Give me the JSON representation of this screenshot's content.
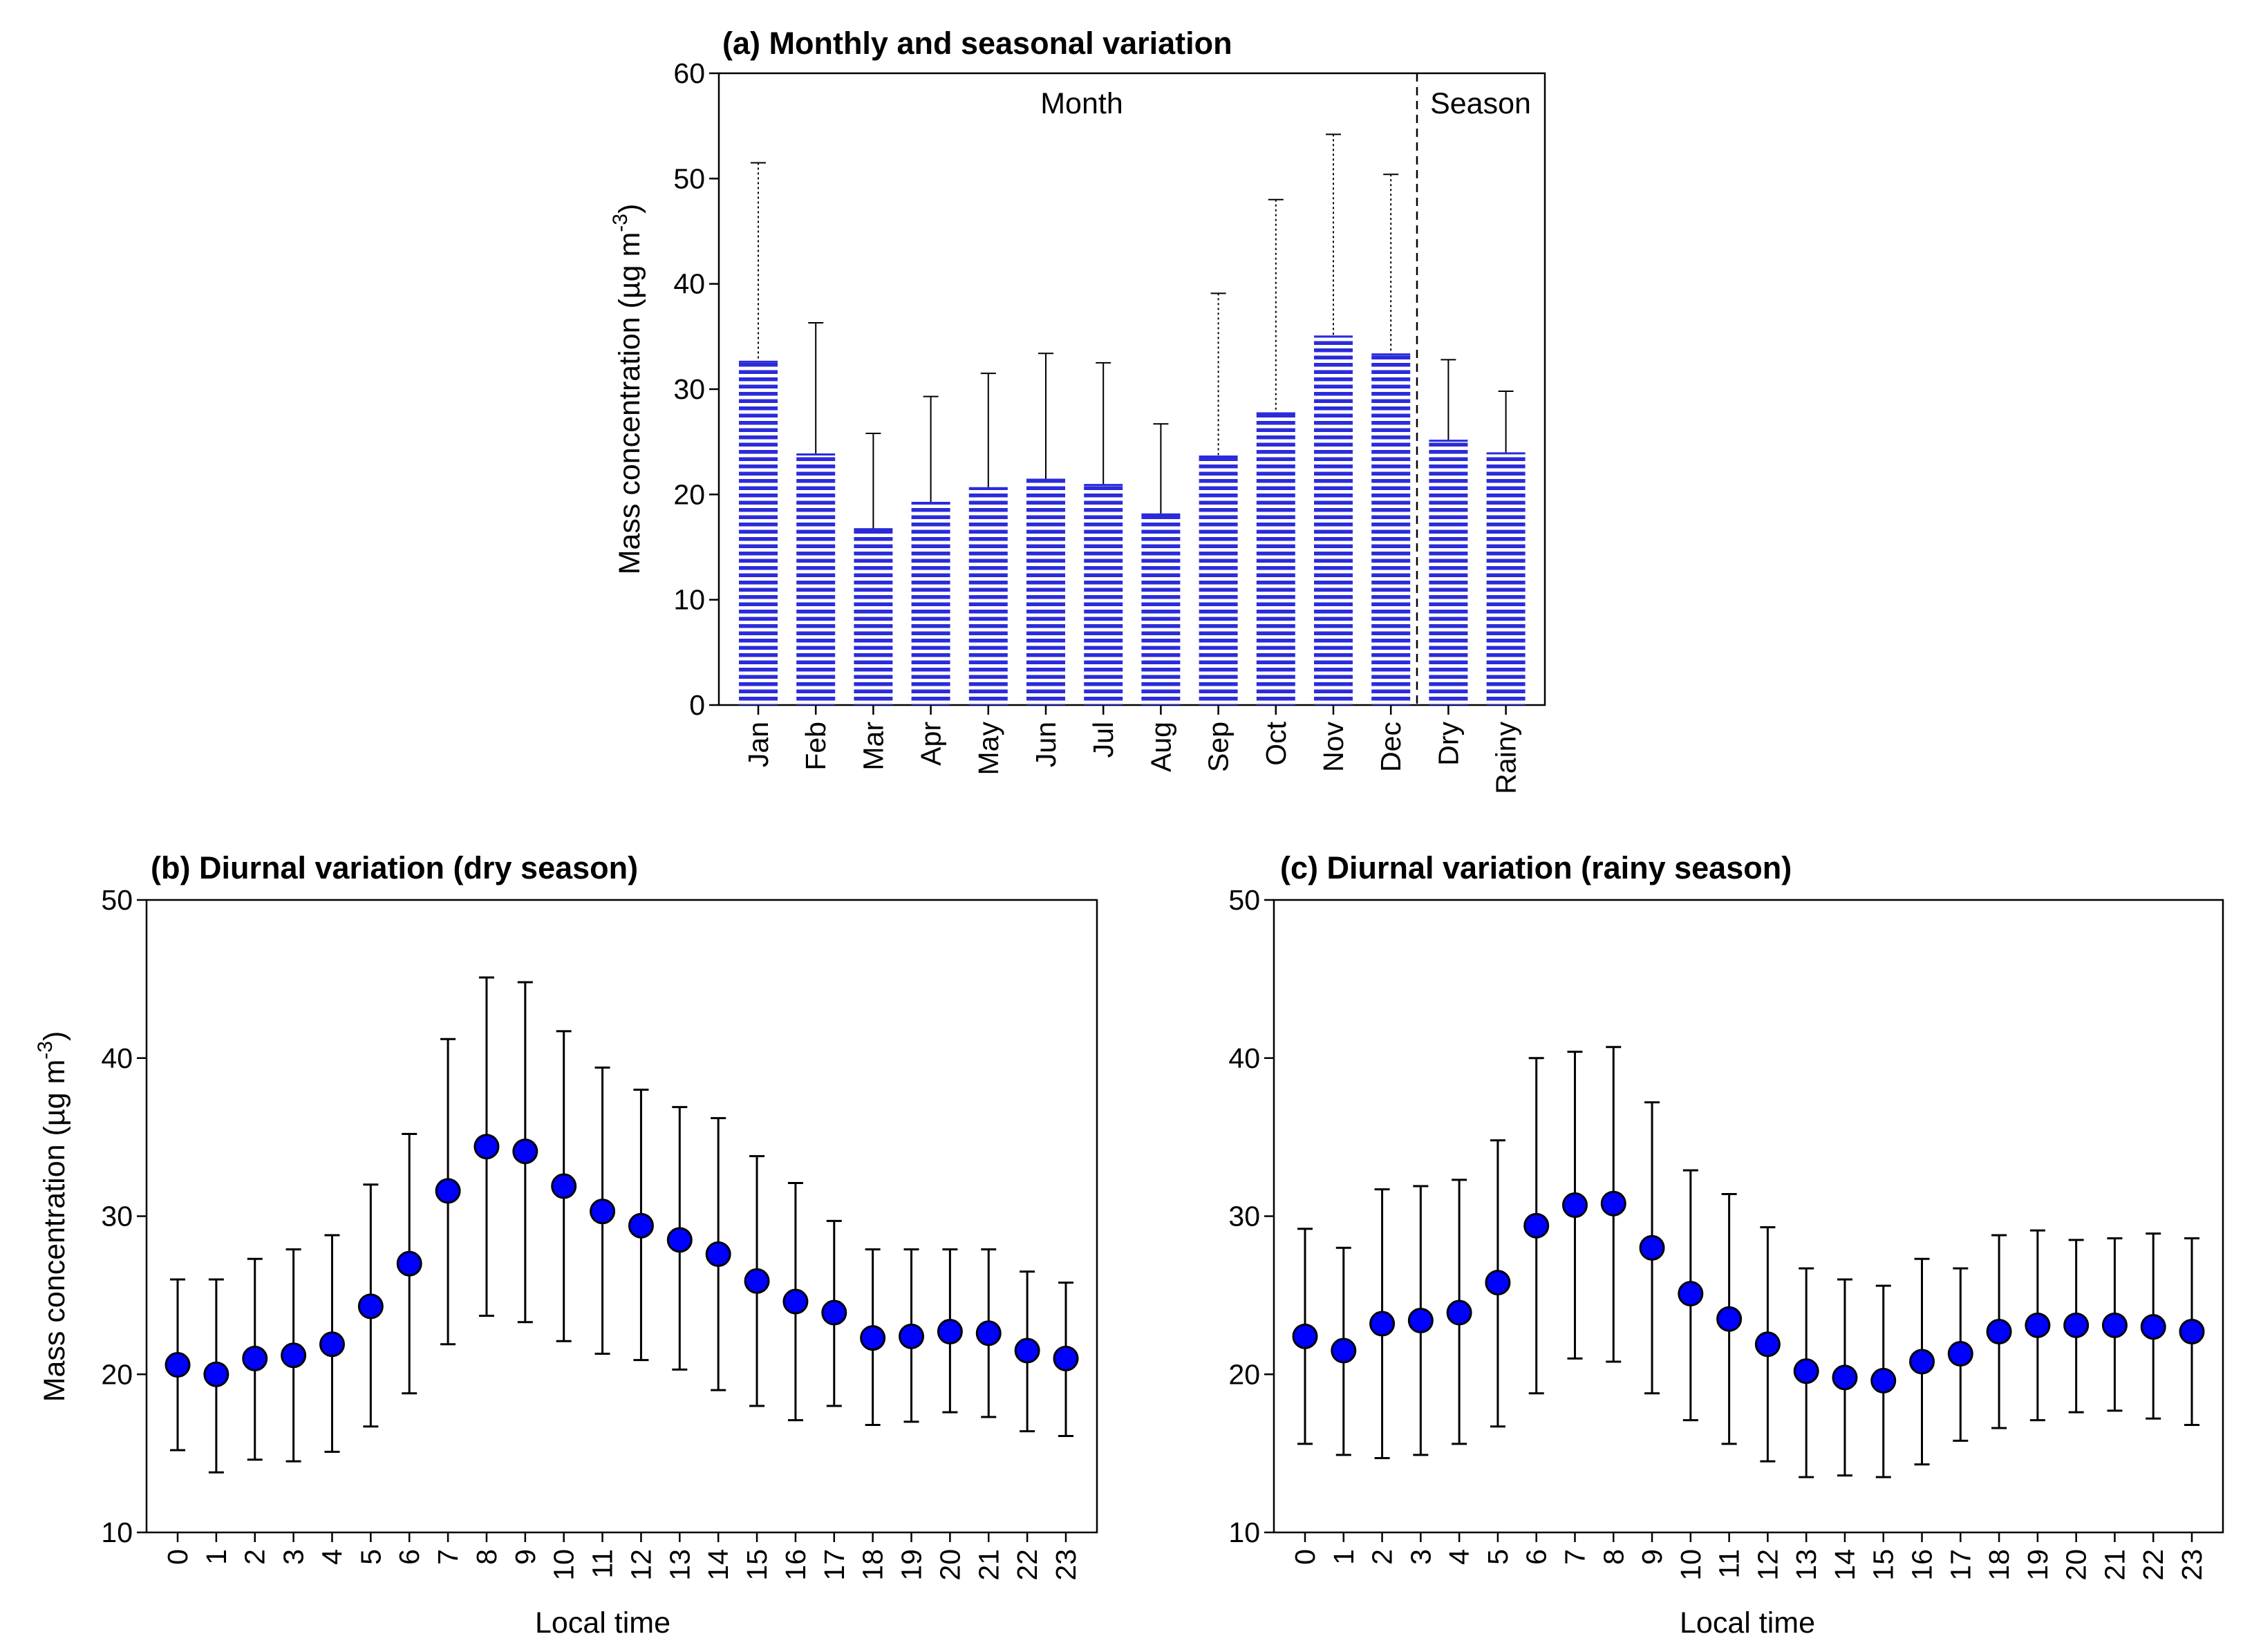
{
  "chart_data": [
    {
      "id": "a",
      "type": "bar",
      "title": "(a) Monthly and seasonal variation",
      "ylabel": "Mass concentration (µg m",
      "ylabel_sup": "-3",
      "ylabel_close": ")",
      "xlabel": "",
      "ylim": [
        0,
        60
      ],
      "yticks": [
        "0",
        "10",
        "20",
        "30",
        "40",
        "50",
        "60"
      ],
      "categories": [
        "Jan",
        "Feb",
        "Mar",
        "Apr",
        "May",
        "Jun",
        "Jul",
        "Aug",
        "Sep",
        "Oct",
        "Nov",
        "Dec",
        "Dry",
        "Rainy"
      ],
      "values": [
        32.6,
        23.8,
        16.7,
        19.2,
        20.6,
        21.4,
        20.9,
        18.1,
        23.6,
        27.7,
        35.0,
        33.3,
        25.1,
        23.9
      ],
      "error_upper": [
        51.5,
        36.3,
        25.8,
        29.3,
        31.5,
        33.4,
        32.5,
        26.7,
        39.1,
        48.0,
        54.2,
        50.4,
        32.8,
        29.8
      ],
      "error_style": [
        "dotted",
        "solid",
        "solid",
        "solid",
        "solid",
        "solid",
        "solid",
        "solid",
        "dotted",
        "dotted",
        "dotted",
        "dotted",
        "solid",
        "solid"
      ],
      "regions": [
        "Month",
        "Season"
      ],
      "divider_after_index": 11,
      "bar_color": "#2b2bdb",
      "grid": false
    },
    {
      "id": "b",
      "type": "scatter",
      "title": "(b) Diurnal variation (dry season)",
      "ylabel": "Mass concentration (µg m",
      "ylabel_sup": "-3",
      "ylabel_close": ")",
      "xlabel": "Local time",
      "ylim": [
        10,
        50
      ],
      "yticks": [
        "10",
        "20",
        "30",
        "40",
        "50"
      ],
      "x": [
        "0",
        "1",
        "2",
        "3",
        "4",
        "5",
        "6",
        "7",
        "8",
        "9",
        "10",
        "11",
        "12",
        "13",
        "14",
        "15",
        "16",
        "17",
        "18",
        "19",
        "20",
        "21",
        "22",
        "23"
      ],
      "values": [
        20.6,
        20.0,
        21.0,
        21.2,
        21.9,
        24.3,
        27.0,
        31.6,
        34.4,
        34.1,
        31.9,
        30.3,
        29.4,
        28.5,
        27.6,
        25.9,
        24.6,
        23.9,
        22.3,
        22.4,
        22.7,
        22.6,
        21.5,
        21.0
      ],
      "error_upper": [
        26.0,
        26.0,
        27.3,
        27.9,
        28.8,
        32.0,
        35.2,
        41.2,
        45.1,
        44.8,
        41.7,
        39.4,
        38.0,
        36.9,
        36.2,
        33.8,
        32.1,
        29.7,
        27.9,
        27.9,
        27.9,
        27.9,
        26.5,
        25.8
      ],
      "error_lower": [
        15.2,
        13.8,
        14.6,
        14.5,
        15.1,
        16.7,
        18.8,
        21.9,
        23.7,
        23.3,
        22.1,
        21.3,
        20.9,
        20.3,
        19.0,
        18.0,
        17.1,
        18.0,
        16.8,
        17.0,
        17.6,
        17.3,
        16.4,
        16.1
      ],
      "marker_color": "#0000ff",
      "grid": false
    },
    {
      "id": "c",
      "type": "scatter",
      "title": "(c) Diurnal variation (rainy season)",
      "xlabel": "Local time",
      "ylabel": "",
      "ylim": [
        10,
        50
      ],
      "yticks": [
        "10",
        "20",
        "30",
        "40",
        "50"
      ],
      "x": [
        "0",
        "1",
        "2",
        "3",
        "4",
        "5",
        "6",
        "7",
        "8",
        "9",
        "10",
        "11",
        "12",
        "13",
        "14",
        "15",
        "16",
        "17",
        "18",
        "19",
        "20",
        "21",
        "22",
        "23"
      ],
      "values": [
        22.4,
        21.5,
        23.2,
        23.4,
        23.9,
        25.8,
        29.4,
        30.7,
        30.8,
        28.0,
        25.1,
        23.5,
        21.9,
        20.2,
        19.8,
        19.6,
        20.8,
        21.3,
        22.7,
        23.1,
        23.1,
        23.1,
        23.0,
        22.7
      ],
      "error_upper": [
        29.2,
        28.0,
        31.7,
        31.9,
        32.3,
        34.8,
        40.0,
        40.4,
        40.7,
        37.2,
        32.9,
        31.4,
        29.3,
        26.7,
        26.0,
        25.6,
        27.3,
        26.7,
        28.8,
        29.1,
        28.5,
        28.6,
        28.9,
        28.6
      ],
      "error_lower": [
        15.6,
        14.9,
        14.7,
        14.9,
        15.6,
        16.7,
        18.8,
        21.0,
        20.8,
        18.8,
        17.1,
        15.6,
        14.5,
        13.5,
        13.6,
        13.5,
        14.3,
        15.8,
        16.6,
        17.1,
        17.6,
        17.7,
        17.2,
        16.8
      ],
      "marker_color": "#0000ff",
      "grid": false
    }
  ]
}
